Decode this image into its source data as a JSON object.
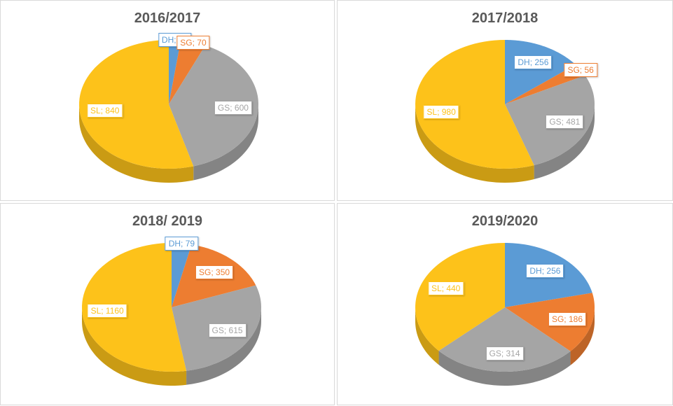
{
  "colors": {
    "DH": "#5b9bd5",
    "SG": "#ed7d31",
    "GS": "#a5a5a5",
    "SL": "#fdc21a"
  },
  "chart_data": [
    {
      "type": "pie",
      "title": "2016/2017",
      "labels": [
        "DH",
        "SG",
        "GS",
        "SL"
      ],
      "values": [
        33,
        70,
        600,
        840
      ]
    },
    {
      "type": "pie",
      "title": "2017/2018",
      "labels": [
        "DH",
        "SG",
        "GS",
        "SL"
      ],
      "values": [
        256,
        56,
        481,
        980
      ]
    },
    {
      "type": "pie",
      "title": "2018/ 2019",
      "labels": [
        "DH",
        "SG",
        "GS",
        "SL"
      ],
      "values": [
        79,
        350,
        615,
        1160
      ]
    },
    {
      "type": "pie",
      "title": "2019/2020",
      "labels": [
        "DH",
        "SG",
        "GS",
        "SL"
      ],
      "values": [
        256,
        186,
        314,
        440
      ]
    }
  ]
}
